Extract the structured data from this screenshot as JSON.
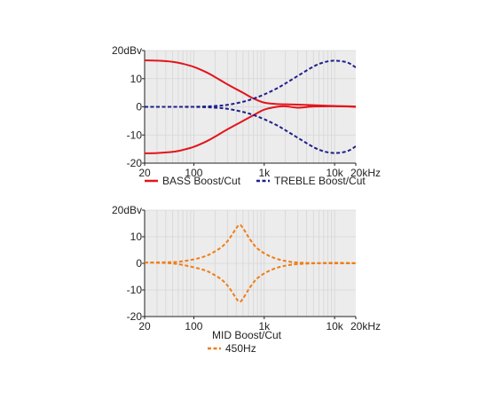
{
  "chart_data": [
    {
      "type": "line",
      "x_scale": "log",
      "xlim": [
        20,
        20000
      ],
      "ylim": [
        -20,
        20
      ],
      "x_ticks": [
        20,
        100,
        1000,
        10000,
        20000
      ],
      "x_tick_labels": [
        "20",
        "100",
        "1k",
        "10k",
        "20kHz"
      ],
      "y_ticks": [
        20,
        10,
        0,
        -10,
        -20
      ],
      "y_tick_labels": [
        "20dBv",
        "10",
        "0",
        "-10",
        "-20"
      ],
      "grid": true,
      "legend_placement": "bottom",
      "series": [
        {
          "name": "BASS Boost/Cut",
          "color": "#e3141c",
          "dash": "solid",
          "curves": [
            {
              "x": [
                20,
                30,
                50,
                70,
                100,
                150,
                200,
                300,
                500,
                700,
                1000,
                1500,
                2000,
                3000,
                5000,
                10000,
                20000
              ],
              "y": [
                16.5,
                16.4,
                16,
                15.3,
                14.2,
                12.3,
                10.6,
                8,
                5,
                3,
                1.5,
                1,
                0.9,
                0.8,
                0.6,
                0.3,
                0.1
              ]
            },
            {
              "x": [
                20,
                30,
                50,
                70,
                100,
                150,
                200,
                300,
                500,
                700,
                1000,
                1500,
                2000,
                3000,
                5000,
                10000,
                20000
              ],
              "y": [
                -16.5,
                -16.4,
                -16,
                -15.3,
                -14.2,
                -12.3,
                -10.6,
                -8,
                -5,
                -3,
                -1,
                0,
                0.2,
                -0.3,
                0.1,
                0.2,
                0
              ]
            }
          ]
        },
        {
          "name": "TREBLE Boost/Cut",
          "color": "#1f1f8c",
          "dash": "dashed",
          "curves": [
            {
              "x": [
                20,
                50,
                100,
                200,
                300,
                500,
                700,
                1000,
                1500,
                2000,
                3000,
                5000,
                7000,
                10000,
                15000,
                20000
              ],
              "y": [
                0,
                0,
                0,
                0.3,
                0.7,
                1.8,
                2.9,
                4.4,
                6.5,
                8.3,
                11,
                14.3,
                15.8,
                16.4,
                15.8,
                14
              ]
            },
            {
              "x": [
                20,
                50,
                100,
                200,
                300,
                500,
                700,
                1000,
                1500,
                2000,
                3000,
                5000,
                7000,
                10000,
                15000,
                20000
              ],
              "y": [
                0,
                0,
                0,
                -0.3,
                -0.7,
                -1.8,
                -2.9,
                -4.4,
                -6.5,
                -8.3,
                -11,
                -14.3,
                -15.8,
                -16.4,
                -15.8,
                -14
              ]
            }
          ]
        }
      ]
    },
    {
      "type": "line",
      "title": "MID Boost/Cut",
      "x_scale": "log",
      "xlim": [
        20,
        20000
      ],
      "ylim": [
        -20,
        20
      ],
      "x_ticks": [
        20,
        100,
        1000,
        10000,
        20000
      ],
      "x_tick_labels": [
        "20",
        "100",
        "1k",
        "10k",
        "20kHz"
      ],
      "y_ticks": [
        20,
        10,
        0,
        -10,
        -20
      ],
      "y_tick_labels": [
        "20dBv",
        "10",
        "0",
        "-10",
        "-20"
      ],
      "grid": true,
      "legend_placement": "bottom",
      "series": [
        {
          "name": "450Hz",
          "color": "#f07d16",
          "dash": "dashed",
          "curves": [
            {
              "x": [
                20,
                40,
                60,
                100,
                150,
                200,
                250,
                300,
                350,
                400,
                450,
                500,
                550,
                600,
                700,
                800,
                1000,
                1300,
                1700,
                2200,
                3000,
                5000,
                10000,
                20000
              ],
              "y": [
                0.3,
                0.4,
                0.6,
                1.5,
                2.8,
                4.5,
                6.2,
                8.3,
                10.8,
                13.2,
                14.5,
                13.2,
                11.5,
                9.8,
                7.3,
                5.6,
                3.8,
                2.3,
                1.3,
                0.7,
                0.3,
                0.1,
                0,
                0
              ]
            },
            {
              "x": [
                20,
                40,
                60,
                100,
                150,
                200,
                250,
                300,
                350,
                400,
                450,
                500,
                550,
                600,
                700,
                800,
                1000,
                1300,
                1700,
                2200,
                3000,
                5000,
                10000,
                20000
              ],
              "y": [
                0.3,
                0.1,
                -0.3,
                -1.5,
                -2.8,
                -4.5,
                -6.2,
                -8.3,
                -10.8,
                -13.2,
                -14.5,
                -13.2,
                -11.5,
                -9.8,
                -7.3,
                -5.6,
                -3.8,
                -2.3,
                -1.3,
                -0.7,
                -0.3,
                0,
                0.2,
                0.1
              ]
            }
          ]
        }
      ]
    }
  ]
}
